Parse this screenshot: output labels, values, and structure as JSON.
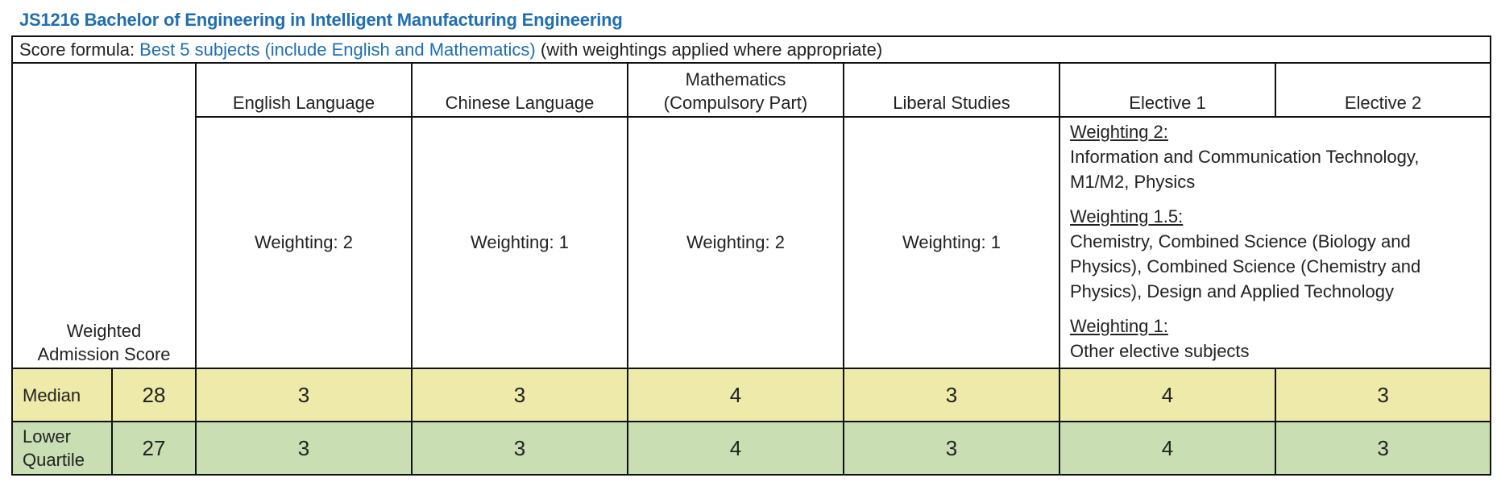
{
  "title": "JS1216 Bachelor of Engineering in Intelligent Manufacturing Engineering",
  "formula": {
    "prefix": "Score formula: ",
    "highlight": "Best 5 subjects (include English and Mathematics)",
    "suffix": " (with weightings applied where appropriate)"
  },
  "header": {
    "weighted_score_line1": "Weighted",
    "weighted_score_line2": "Admission Score",
    "columns": [
      {
        "line1": "English Language",
        "line2": ""
      },
      {
        "line1": "Chinese Language",
        "line2": ""
      },
      {
        "line1": "Mathematics",
        "line2": "(Compulsory Part)"
      },
      {
        "line1": "Liberal Studies",
        "line2": ""
      },
      {
        "line1": "Elective 1",
        "line2": ""
      },
      {
        "line1": "Elective 2",
        "line2": ""
      }
    ]
  },
  "weightings": [
    "Weighting: 2",
    "Weighting: 1",
    "Weighting: 2",
    "Weighting: 1"
  ],
  "elective_weightings": {
    "w2_heading": "Weighting 2:",
    "w2_line1": "Information and Communication Technology,",
    "w2_line2": "M1/M2, Physics",
    "w15_heading": "Weighting 1.5:",
    "w15_line1": "Chemistry, Combined Science (Biology and",
    "w15_line2": "Physics), Combined Science (Chemistry and",
    "w15_line3": "Physics), Design and Applied Technology",
    "w1_heading": "Weighting 1:",
    "w1_line1": "Other elective subjects"
  },
  "rows": [
    {
      "label_line1": "Median",
      "label_line2": "",
      "score": "28",
      "values": [
        "3",
        "3",
        "4",
        "3",
        "4",
        "3"
      ],
      "color": "#eeeaa9"
    },
    {
      "label_line1": "Lower",
      "label_line2": "Quartile",
      "score": "27",
      "values": [
        "3",
        "3",
        "4",
        "3",
        "4",
        "3"
      ],
      "color": "#c9dfb3"
    }
  ]
}
